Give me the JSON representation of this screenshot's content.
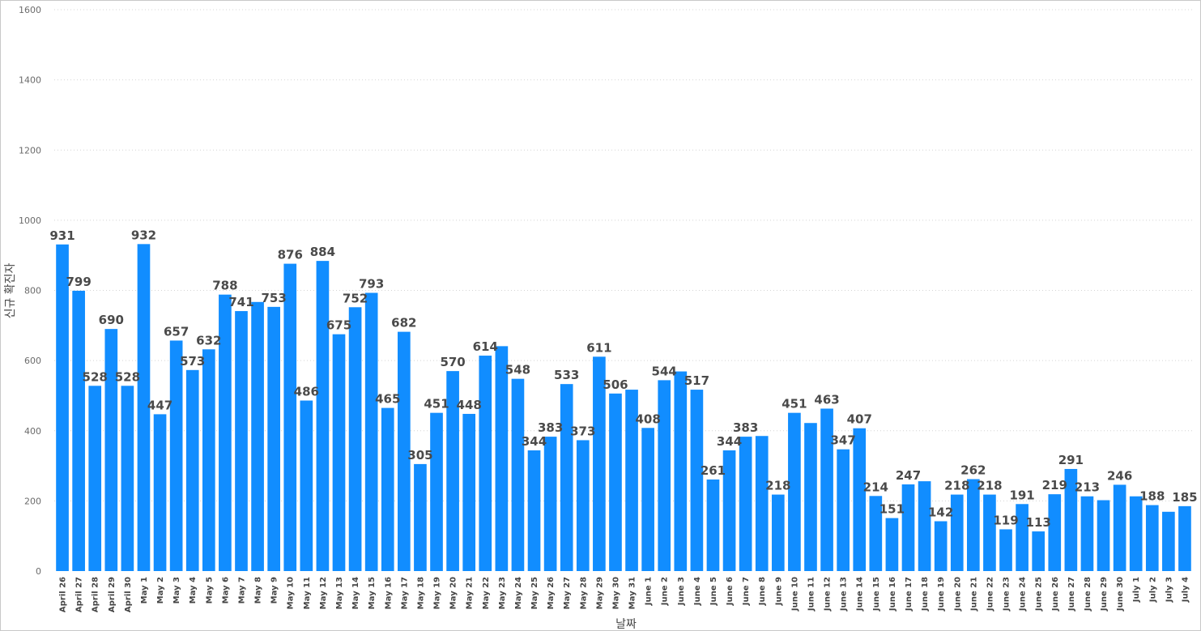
{
  "colors": {
    "bar": "#118dff",
    "label": "#4a4a4a",
    "axis_text": "#6b6b6b",
    "grid": "#d4d4d4"
  },
  "chart_data": {
    "type": "bar",
    "xlabel": "날짜",
    "ylabel": "신규 확진자",
    "ylim": [
      0,
      1600
    ],
    "yticks": [
      0,
      200,
      400,
      600,
      800,
      1000,
      1200,
      1400,
      1600
    ],
    "grid": true,
    "categories": [
      "April 26",
      "April 27",
      "April 28",
      "April 29",
      "April 30",
      "May 1",
      "May 2",
      "May 3",
      "May 4",
      "May 5",
      "May 6",
      "May 7",
      "May 8",
      "May 9",
      "May 10",
      "May 11",
      "May 12",
      "May 13",
      "May 14",
      "May 15",
      "May 16",
      "May 17",
      "May 18",
      "May 19",
      "May 20",
      "May 21",
      "May 22",
      "May 23",
      "May 24",
      "May 25",
      "May 26",
      "May 27",
      "May 28",
      "May 29",
      "May 30",
      "May 31",
      "June 1",
      "June 2",
      "June 3",
      "June 4",
      "June 5",
      "June 6",
      "June 7",
      "June 8",
      "June 9",
      "June 10",
      "June 11",
      "June 12",
      "June 13",
      "June 14",
      "June 15",
      "June 16",
      "June 17",
      "June 18",
      "June 19",
      "June 20",
      "June 21",
      "June 22",
      "June 23",
      "June 24",
      "June 25",
      "June 26",
      "June 27",
      "June 28",
      "June 29",
      "June 30",
      "July 1",
      "July 2",
      "July 3",
      "July 4"
    ],
    "values": [
      931,
      799,
      528,
      690,
      528,
      932,
      447,
      657,
      573,
      632,
      788,
      741,
      767,
      753,
      876,
      486,
      884,
      675,
      752,
      793,
      465,
      682,
      305,
      451,
      570,
      448,
      614,
      641,
      548,
      344,
      383,
      533,
      373,
      611,
      506,
      517,
      408,
      544,
      569,
      517,
      261,
      344,
      383,
      385,
      218,
      451,
      422,
      463,
      347,
      407,
      214,
      151,
      247,
      256,
      142,
      218,
      262,
      218,
      119,
      191,
      113,
      219,
      291,
      213,
      202,
      246,
      213,
      188,
      169,
      185
    ],
    "data_labels": [
      "931",
      "799",
      "528",
      "690",
      "528",
      "932",
      "447",
      "657",
      "573",
      "632",
      "788",
      "741",
      "",
      "753",
      "876",
      "486",
      "884",
      "675",
      "752",
      "793",
      "465",
      "682",
      "305",
      "451",
      "570",
      "448",
      "614",
      "",
      "548",
      "344",
      "383",
      "533",
      "373",
      "611",
      "506",
      "",
      "408",
      "544",
      "",
      "517",
      "261",
      "344",
      "383",
      "",
      "218",
      "451",
      "",
      "463",
      "347",
      "407",
      "214",
      "151",
      "247",
      "",
      "142",
      "218",
      "262",
      "218",
      "119",
      "191",
      "113",
      "219",
      "291",
      "213",
      "",
      "246",
      "",
      "188",
      "",
      "185"
    ]
  }
}
